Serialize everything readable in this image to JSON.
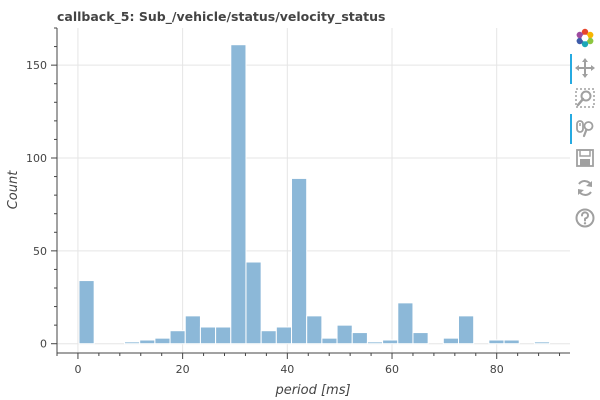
{
  "chart_data": {
    "type": "bar",
    "title": "callback_5: Sub_/vehicle/status/velocity_status",
    "xlabel": "period [ms]",
    "ylabel": "Count",
    "xlim": [
      -4,
      94
    ],
    "ylim": [
      -5,
      170
    ],
    "xticks": [
      0,
      20,
      40,
      60,
      80
    ],
    "yticks": [
      0,
      50,
      100,
      150
    ],
    "grid": true,
    "bin_width": 2.9,
    "bars": [
      {
        "x0": 0.2,
        "x1": 3.1,
        "count": 34
      },
      {
        "x0": 8.9,
        "x1": 11.8,
        "count": 1
      },
      {
        "x0": 11.8,
        "x1": 14.7,
        "count": 2
      },
      {
        "x0": 14.7,
        "x1": 17.6,
        "count": 3
      },
      {
        "x0": 17.6,
        "x1": 20.5,
        "count": 7
      },
      {
        "x0": 20.5,
        "x1": 23.4,
        "count": 15
      },
      {
        "x0": 23.4,
        "x1": 26.3,
        "count": 9
      },
      {
        "x0": 26.3,
        "x1": 29.2,
        "count": 9
      },
      {
        "x0": 29.2,
        "x1": 32.1,
        "count": 161
      },
      {
        "x0": 32.1,
        "x1": 35.0,
        "count": 44
      },
      {
        "x0": 35.0,
        "x1": 37.9,
        "count": 7
      },
      {
        "x0": 37.9,
        "x1": 40.8,
        "count": 9
      },
      {
        "x0": 40.8,
        "x1": 43.7,
        "count": 89
      },
      {
        "x0": 43.7,
        "x1": 46.6,
        "count": 15
      },
      {
        "x0": 46.6,
        "x1": 49.5,
        "count": 3
      },
      {
        "x0": 49.5,
        "x1": 52.4,
        "count": 10
      },
      {
        "x0": 52.4,
        "x1": 55.3,
        "count": 6
      },
      {
        "x0": 55.3,
        "x1": 58.2,
        "count": 1
      },
      {
        "x0": 58.2,
        "x1": 61.1,
        "count": 2
      },
      {
        "x0": 61.1,
        "x1": 64.0,
        "count": 22
      },
      {
        "x0": 64.0,
        "x1": 66.9,
        "count": 6
      },
      {
        "x0": 69.8,
        "x1": 72.7,
        "count": 3
      },
      {
        "x0": 72.7,
        "x1": 75.6,
        "count": 15
      },
      {
        "x0": 78.5,
        "x1": 81.4,
        "count": 2
      },
      {
        "x0": 81.4,
        "x1": 84.3,
        "count": 2
      },
      {
        "x0": 87.2,
        "x1": 90.1,
        "count": 1
      }
    ],
    "colors": {
      "bar_fill": "#8cb8d8",
      "bar_edge": "#ffffff",
      "grid": "#e5e5e5",
      "axis": "#444444",
      "text": "#444444",
      "title": "#444444"
    }
  },
  "toolbar": {
    "tools": [
      {
        "icon": "bokeh-logo-icon",
        "active": false
      },
      {
        "icon": "pan-icon",
        "active": true
      },
      {
        "icon": "box-zoom-icon",
        "active": false
      },
      {
        "icon": "wheel-zoom-icon",
        "active": true
      },
      {
        "icon": "save-icon",
        "active": false
      },
      {
        "icon": "reset-icon",
        "active": false
      },
      {
        "icon": "help-icon",
        "active": false
      }
    ],
    "accent": "#26aae1",
    "icon_color": "#a0a0a0"
  }
}
